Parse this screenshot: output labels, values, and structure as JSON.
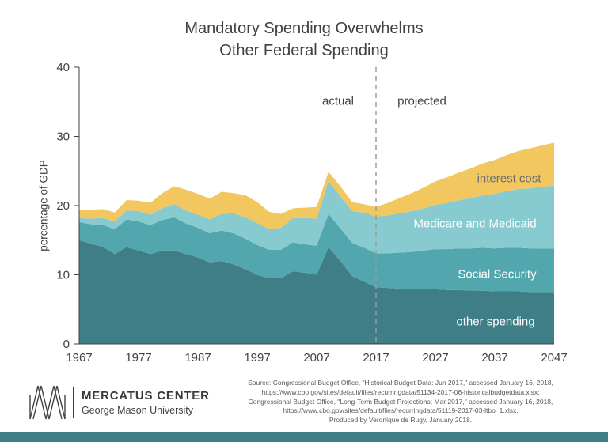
{
  "page": {
    "background": "#ffffff",
    "bottom_bar_color": "#3F7E86"
  },
  "header": {
    "title_line1": "Mandatory Spending Overwhelms",
    "title_line2": "Other Federal Spending"
  },
  "chart_data": {
    "type": "area",
    "stacked": true,
    "title": "Mandatory Spending Overwhelms Other Federal Spending",
    "xlabel": "",
    "ylabel": "percentage of GDP",
    "ylim": [
      0,
      40
    ],
    "yticks": [
      0,
      10,
      20,
      30,
      40
    ],
    "xticks": [
      1967,
      1977,
      1987,
      1997,
      2007,
      2017,
      2027,
      2037,
      2047
    ],
    "divider": {
      "x": 2017,
      "left_label": "actual",
      "right_label": "projected"
    },
    "grid": false,
    "legend_position": "in-plot-labels",
    "years": [
      1967,
      1969,
      1971,
      1973,
      1975,
      1977,
      1979,
      1981,
      1983,
      1985,
      1987,
      1989,
      1991,
      1993,
      1995,
      1997,
      1999,
      2001,
      2003,
      2005,
      2007,
      2009,
      2011,
      2013,
      2015,
      2017,
      2019,
      2021,
      2023,
      2025,
      2027,
      2029,
      2031,
      2033,
      2035,
      2037,
      2039,
      2041,
      2043,
      2045,
      2047
    ],
    "series": [
      {
        "name": "other spending",
        "color": "#3F7E86",
        "label_color": "#ffffff",
        "values": [
          15.0,
          14.5,
          14.0,
          13.0,
          14.0,
          13.5,
          13.0,
          13.5,
          13.5,
          13.0,
          12.5,
          11.8,
          12.0,
          11.5,
          10.8,
          10.0,
          9.5,
          9.5,
          10.5,
          10.3,
          10.0,
          14.0,
          12.0,
          9.8,
          9.0,
          8.2,
          8.1,
          8.0,
          7.9,
          7.9,
          7.9,
          7.8,
          7.8,
          7.7,
          7.7,
          7.6,
          7.6,
          7.6,
          7.5,
          7.5,
          7.5
        ]
      },
      {
        "name": "Social Security",
        "color": "#52A6AD",
        "label_color": "#ffffff",
        "values": [
          2.6,
          2.8,
          3.2,
          3.6,
          4.0,
          4.2,
          4.2,
          4.4,
          4.8,
          4.4,
          4.3,
          4.2,
          4.4,
          4.5,
          4.4,
          4.3,
          4.1,
          4.1,
          4.2,
          4.1,
          4.2,
          4.8,
          4.7,
          4.8,
          4.9,
          4.9,
          5.0,
          5.2,
          5.4,
          5.6,
          5.8,
          5.9,
          6.0,
          6.1,
          6.2,
          6.2,
          6.3,
          6.3,
          6.3,
          6.3,
          6.3
        ]
      },
      {
        "name": "Medicare and Medicaid",
        "color": "#87CBD0",
        "label_color": "#ffffff",
        "values": [
          0.6,
          0.8,
          1.0,
          1.1,
          1.3,
          1.5,
          1.5,
          1.7,
          1.9,
          1.9,
          1.9,
          2.0,
          2.4,
          2.9,
          3.1,
          3.2,
          3.0,
          3.2,
          3.5,
          3.8,
          3.9,
          4.8,
          4.6,
          4.6,
          5.1,
          5.3,
          5.5,
          5.7,
          5.9,
          6.1,
          6.4,
          6.7,
          7.0,
          7.3,
          7.6,
          7.9,
          8.2,
          8.5,
          8.7,
          8.9,
          9.1
        ]
      },
      {
        "name": "interest cost",
        "color": "#F3C75F",
        "label_color": "#6d6e71",
        "values": [
          1.2,
          1.3,
          1.3,
          1.3,
          1.5,
          1.5,
          1.7,
          2.2,
          2.6,
          3.0,
          3.0,
          3.0,
          3.2,
          2.9,
          3.2,
          3.0,
          2.5,
          2.0,
          1.4,
          1.5,
          1.7,
          1.3,
          1.5,
          1.3,
          1.2,
          1.4,
          1.8,
          2.2,
          2.6,
          3.0,
          3.4,
          3.7,
          4.0,
          4.3,
          4.6,
          4.9,
          5.2,
          5.5,
          5.8,
          6.0,
          6.2
        ]
      }
    ]
  },
  "footer": {
    "logo": {
      "name": "MERCATUS CENTER",
      "subname": "George Mason University"
    },
    "source_lines": [
      "Source: Congressional Budget Office, \"Historical Budget Data: Jun 2017,\" accessed January 16, 2018,",
      "https://www.cbo.gov/sites/default/files/recurringdata/51134-2017-06-historicalbudgetdata.xlsx;",
      "Congressional Budget Office, \"Long-Term Budget Projections: Mar 2017,\" accessed January 16, 2018,",
      "https://www.cbo.gov/sites/default/files/recurringdata/51119-2017-03-ltbo_1.xlsx.",
      "Produced by Veronique de Rugy, January 2018."
    ]
  }
}
